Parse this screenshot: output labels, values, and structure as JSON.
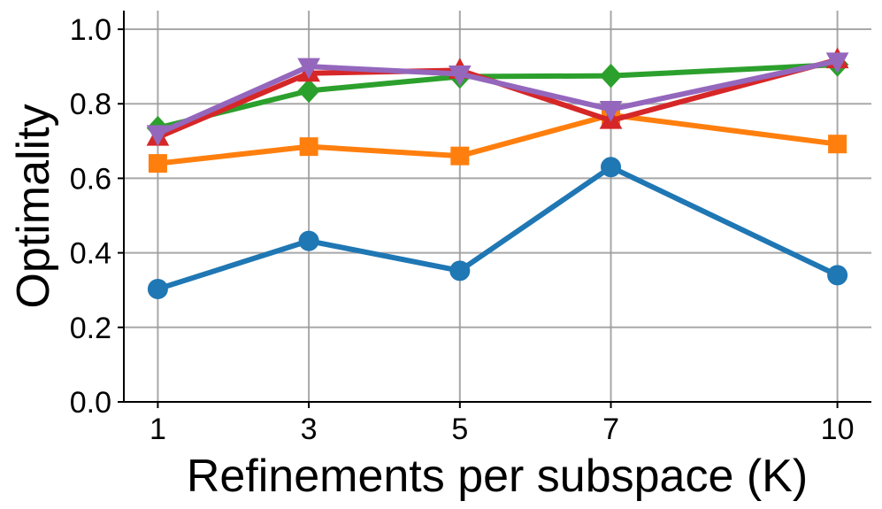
{
  "chart_data": {
    "type": "line",
    "title": "",
    "xlabel": "Refinements per subspace (K)",
    "ylabel": "Optimality",
    "x": [
      1,
      3,
      5,
      7,
      10
    ],
    "xticks": [
      "1",
      "3",
      "5",
      "7",
      "10"
    ],
    "yticks": [
      "0.0",
      "0.2",
      "0.4",
      "0.6",
      "0.8",
      "1.0"
    ],
    "xlim": [
      0.55,
      10.45
    ],
    "ylim": [
      0,
      1.05
    ],
    "grid": true,
    "legend": "none",
    "series": [
      {
        "color": "#1f77b4",
        "marker": "circle",
        "values": [
          0.303,
          0.432,
          0.352,
          0.63,
          0.34
        ]
      },
      {
        "color": "#ff7f0e",
        "marker": "square",
        "values": [
          0.64,
          0.685,
          0.66,
          0.77,
          0.692
        ]
      },
      {
        "color": "#2ca02c",
        "marker": "diamond",
        "values": [
          0.735,
          0.835,
          0.873,
          0.875,
          0.905
        ]
      },
      {
        "color": "#d62728",
        "marker": "triangle-up",
        "values": [
          0.71,
          0.882,
          0.89,
          0.755,
          0.918
        ]
      },
      {
        "color": "#9467bd",
        "marker": "triangle-down",
        "values": [
          0.72,
          0.9,
          0.88,
          0.785,
          0.915
        ]
      }
    ]
  }
}
